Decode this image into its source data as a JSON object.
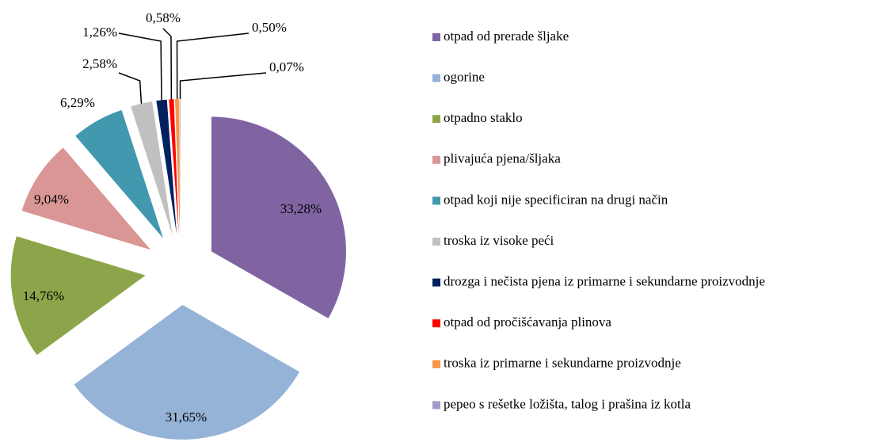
{
  "chart_data": {
    "type": "pie",
    "categories": [
      "otpad od prerade šljake",
      "ogorine",
      "otpadno staklo",
      "plivajuća pjena/šljaka",
      "otpad koji nije specificiran na drugi način",
      "troska iz visoke peći",
      "drozga i nečista pjena iz primarne i sekundarne proizvodnje",
      "otpad od pročišćavanja plinova",
      "troska iz primarne i sekundarne proizvodnje",
      "pepeo s rešetke ložišta, talog i prašina iz kotla"
    ],
    "values": [
      33.28,
      31.65,
      14.76,
      9.04,
      6.29,
      2.58,
      1.26,
      0.58,
      0.5,
      0.07
    ],
    "value_labels": [
      "33,28%",
      "31,65%",
      "14,76%",
      "9,04%",
      "6,29%",
      "2,58%",
      "1,26%",
      "0,58%",
      "0,50%",
      "0,07%"
    ],
    "colors": [
      "#8064a2",
      "#95b3d7",
      "#8da54a",
      "#d99694",
      "#4198af",
      "#c0c0c0",
      "#002060",
      "#ff0000",
      "#f79646",
      "#a59bc8"
    ],
    "legend": "right"
  }
}
